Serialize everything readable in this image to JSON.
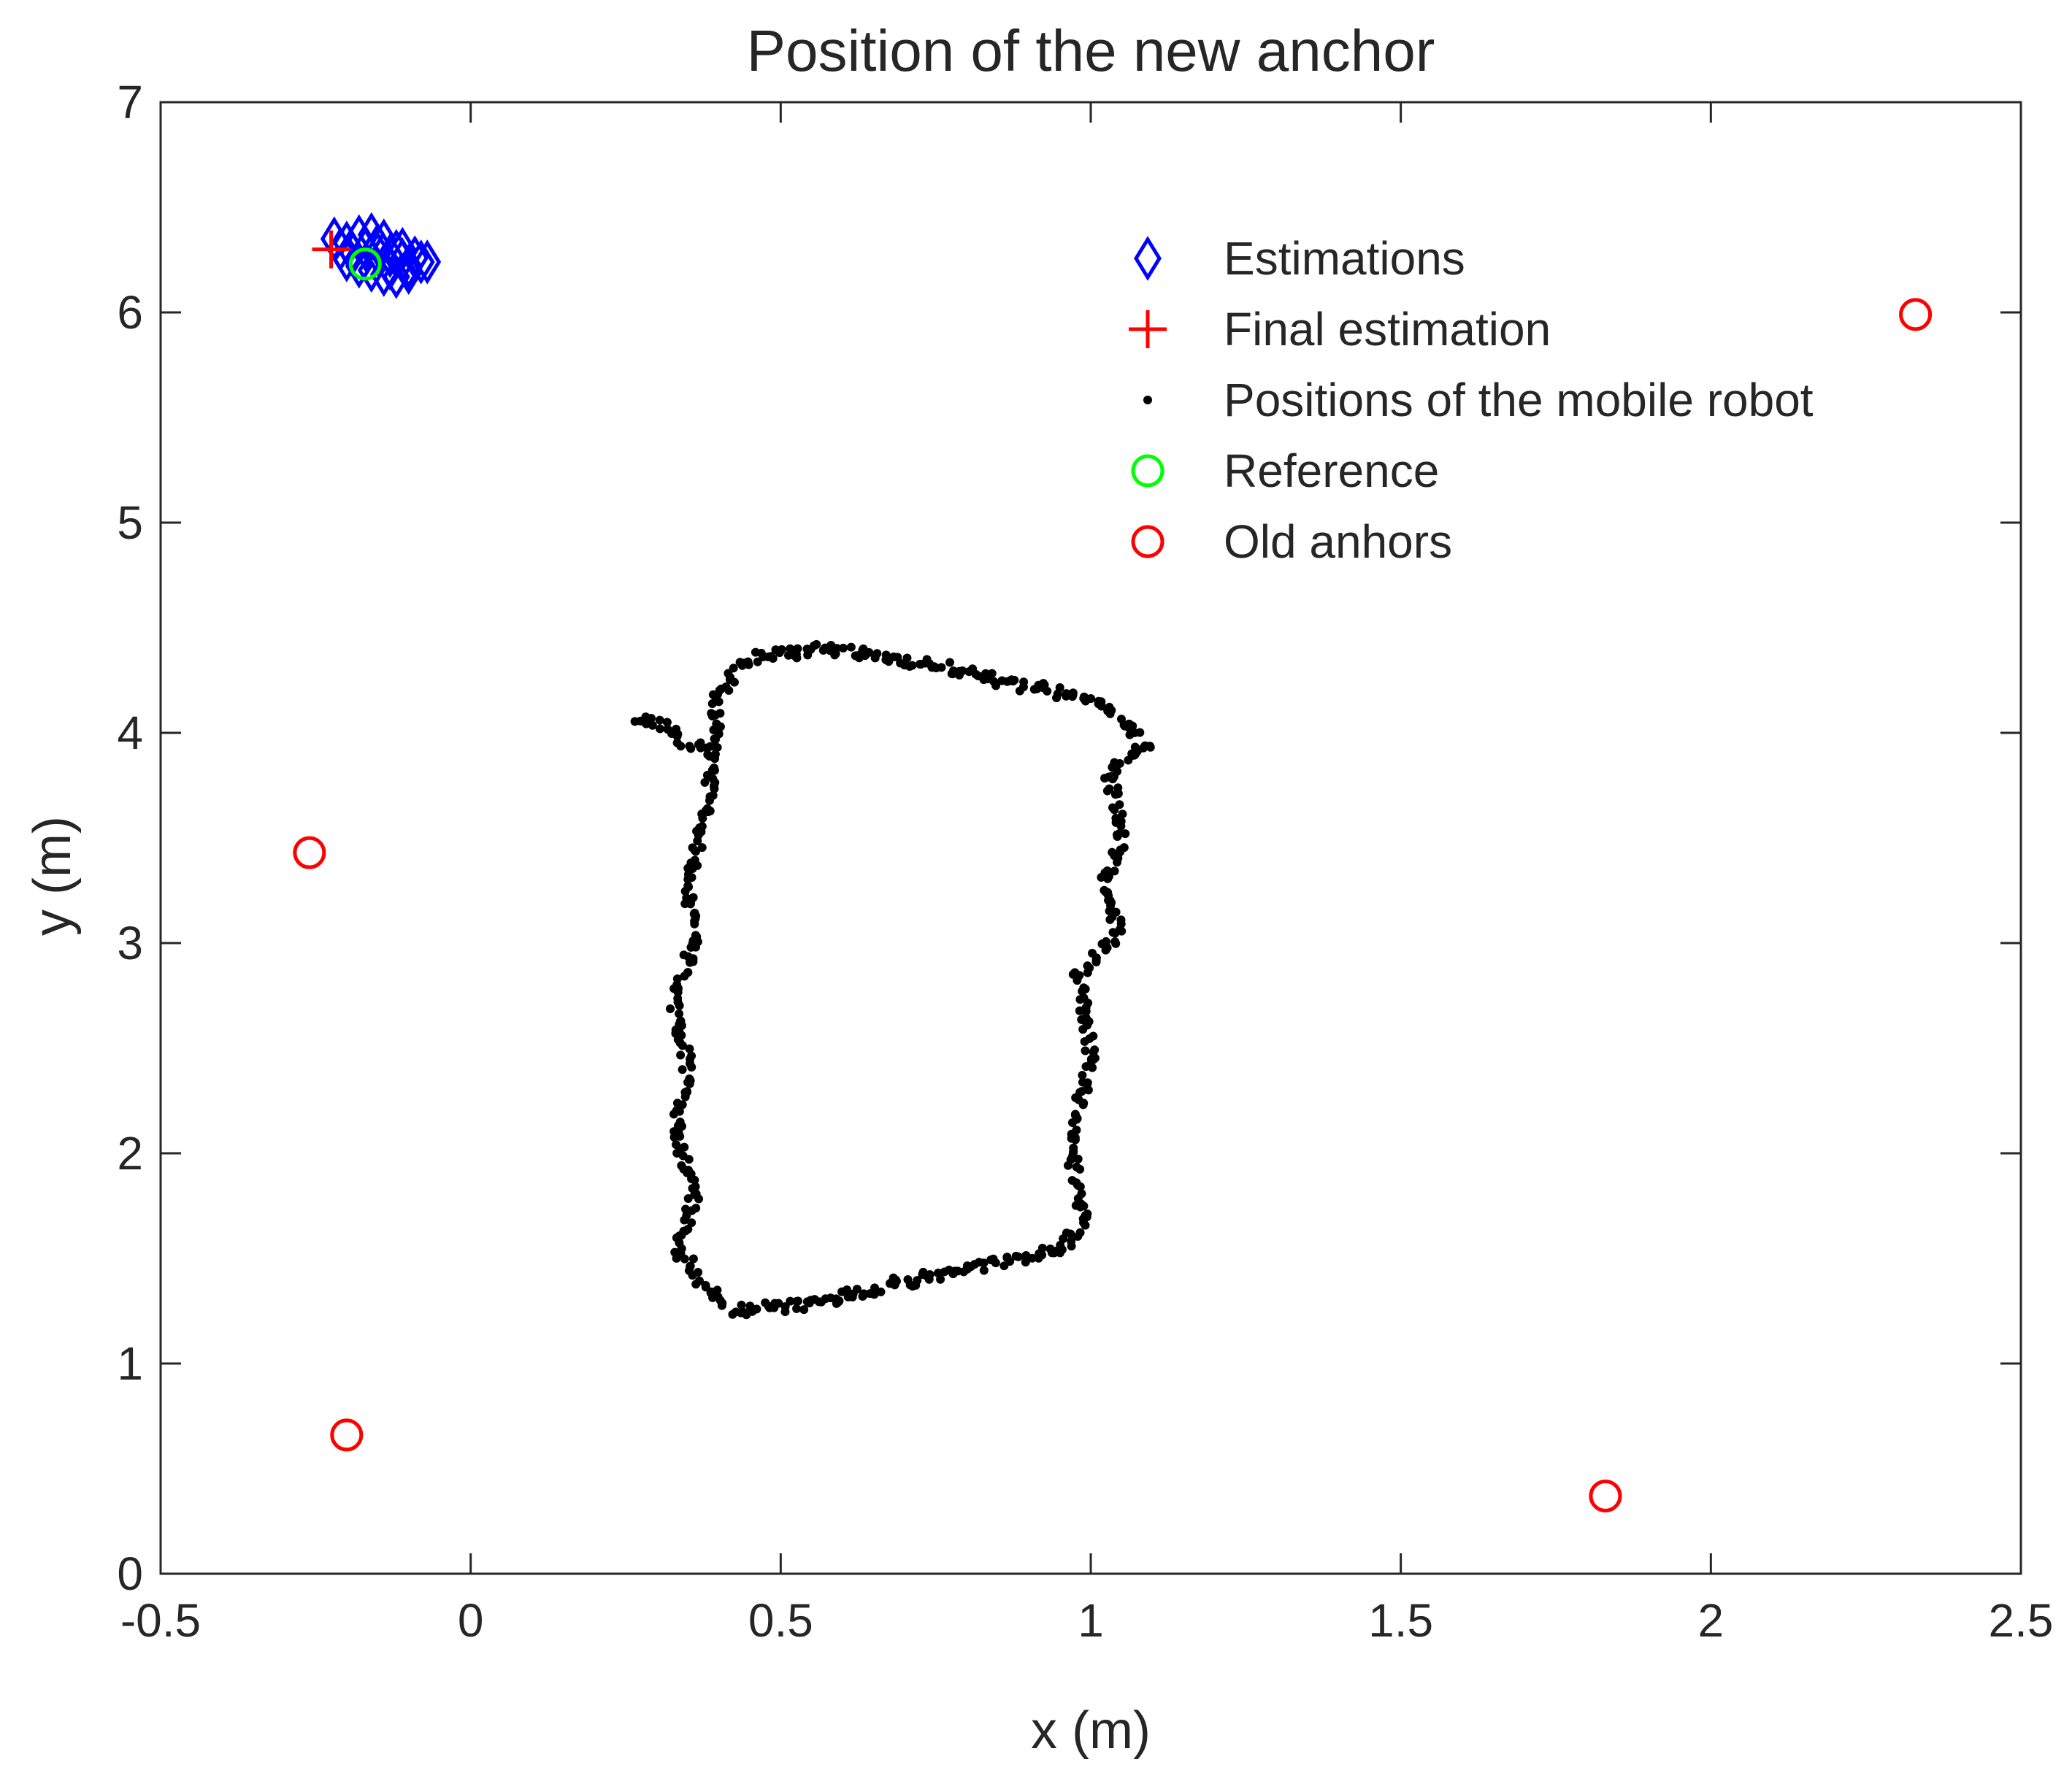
{
  "chart_data": {
    "type": "scatter",
    "title": "Position of the new anchor",
    "xlabel": "x (m)",
    "ylabel": "y (m)",
    "xlim": [
      -0.5,
      2.5
    ],
    "ylim": [
      0,
      7
    ],
    "xticks": [
      -0.5,
      0,
      0.5,
      1,
      1.5,
      2,
      2.5
    ],
    "xtick_labels": [
      "-0.5",
      "0",
      "0.5",
      "1",
      "1.5",
      "2",
      "2.5"
    ],
    "yticks": [
      0,
      1,
      2,
      3,
      4,
      5,
      6,
      7
    ],
    "ytick_labels": [
      "0",
      "1",
      "2",
      "3",
      "4",
      "5",
      "6",
      "7"
    ],
    "grid": false,
    "legend_position": "top-right",
    "series": [
      {
        "name": "Estimations",
        "marker": "diamond",
        "color": "#0000ff",
        "x": [
          -0.22,
          -0.21,
          -0.2,
          -0.19,
          -0.18,
          -0.17,
          -0.16,
          -0.15,
          -0.14,
          -0.13,
          -0.12,
          -0.11,
          -0.1,
          -0.09,
          -0.08,
          -0.07,
          -0.2,
          -0.18,
          -0.16,
          -0.14,
          -0.12,
          -0.1,
          -0.15,
          -0.13,
          -0.11
        ],
        "y": [
          6.35,
          6.3,
          6.33,
          6.28,
          6.36,
          6.3,
          6.37,
          6.32,
          6.34,
          6.27,
          6.29,
          6.25,
          6.22,
          6.26,
          6.24,
          6.24,
          6.25,
          6.22,
          6.2,
          6.18,
          6.17,
          6.19,
          6.28,
          6.21,
          6.3
        ]
      },
      {
        "name": "Final estimation",
        "marker": "plus",
        "color": "#ff0000",
        "x": [
          -0.225
        ],
        "y": [
          6.3
        ]
      },
      {
        "name": "Positions of the mobile robot",
        "marker": "dot",
        "color": "#000000",
        "path_vertices": [
          [
            0.96,
            1.55
          ],
          [
            0.75,
            1.42
          ],
          [
            0.6,
            1.32
          ],
          [
            0.5,
            1.27
          ],
          [
            0.42,
            1.25
          ],
          [
            0.37,
            1.4
          ],
          [
            0.33,
            1.55
          ],
          [
            0.36,
            1.8
          ],
          [
            0.33,
            2.1
          ],
          [
            0.35,
            2.4
          ],
          [
            0.33,
            2.7
          ],
          [
            0.36,
            3.0
          ],
          [
            0.35,
            3.3
          ],
          [
            0.38,
            3.6
          ],
          [
            0.39,
            3.9
          ],
          [
            0.4,
            4.2
          ],
          [
            0.45,
            4.35
          ],
          [
            0.55,
            4.4
          ],
          [
            0.7,
            4.35
          ],
          [
            0.9,
            4.22
          ],
          [
            1.02,
            4.15
          ],
          [
            1.05,
            4.05
          ],
          [
            1.09,
            3.95
          ],
          [
            1.03,
            3.8
          ],
          [
            1.05,
            3.5
          ],
          [
            1.02,
            3.25
          ],
          [
            1.05,
            3.05
          ],
          [
            0.98,
            2.85
          ],
          [
            1.0,
            2.5
          ],
          [
            0.98,
            2.2
          ],
          [
            0.97,
            1.95
          ],
          [
            0.99,
            1.7
          ],
          [
            0.96,
            1.55
          ]
        ],
        "spur_vertices": [
          [
            0.39,
            3.9
          ],
          [
            0.34,
            3.97
          ],
          [
            0.3,
            4.05
          ],
          [
            0.26,
            4.08
          ]
        ],
        "num_points": 640
      },
      {
        "name": "Reference",
        "marker": "circle",
        "color": "#00ff00",
        "x": [
          -0.17
        ],
        "y": [
          6.23
        ]
      },
      {
        "name": "Old anhors",
        "marker": "circle",
        "color": "#ff0000",
        "x": [
          -0.26,
          -0.2,
          1.83,
          2.33
        ],
        "y": [
          3.43,
          0.66,
          0.37,
          5.99
        ]
      }
    ]
  }
}
